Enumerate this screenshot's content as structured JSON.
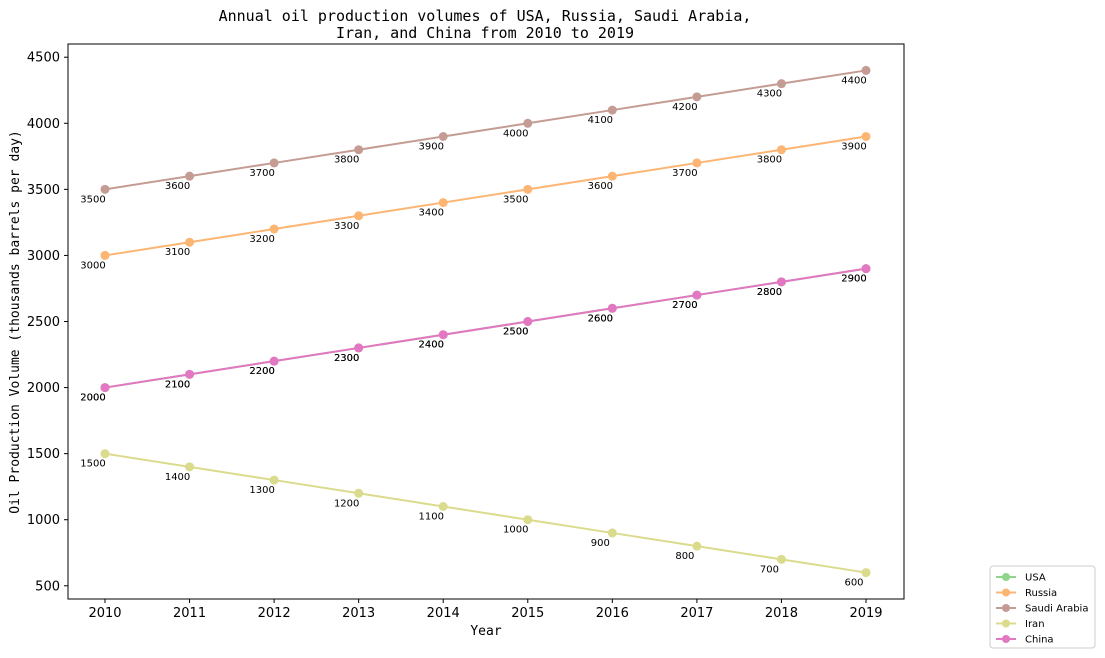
{
  "chart_data": {
    "type": "line",
    "title_lines": [
      "Annual oil production volumes of USA, Russia, Saudi Arabia,",
      "Iran, and China from 2010 to 2019"
    ],
    "xlabel": "Year",
    "ylabel": "Oil Production Volume (thousands barrels per day)",
    "x": [
      2010,
      2011,
      2012,
      2013,
      2014,
      2015,
      2016,
      2017,
      2018,
      2019
    ],
    "ylim": [
      400,
      4600
    ],
    "yticks": [
      500,
      1000,
      1500,
      2000,
      2500,
      3000,
      3500,
      4000,
      4500
    ],
    "grid": false,
    "legend_position": "bottom-right, outside plot",
    "series": [
      {
        "name": "USA",
        "color": "#8fd68a",
        "values": [
          2000,
          2100,
          2200,
          2300,
          2400,
          2500,
          2600,
          2700,
          2800,
          2900
        ]
      },
      {
        "name": "Russia",
        "color": "#fdb574",
        "values": [
          3000,
          3100,
          3200,
          3300,
          3400,
          3500,
          3600,
          3700,
          3800,
          3900
        ]
      },
      {
        "name": "Saudi Arabia",
        "color": "#c49c94",
        "values": [
          3500,
          3600,
          3700,
          3800,
          3900,
          4000,
          4100,
          4200,
          4300,
          4400
        ]
      },
      {
        "name": "Iran",
        "color": "#dbdb8d",
        "values": [
          1500,
          1400,
          1300,
          1200,
          1100,
          1000,
          900,
          800,
          700,
          600
        ]
      },
      {
        "name": "China",
        "color": "#e377c2",
        "values": [
          2000,
          2100,
          2200,
          2300,
          2400,
          2500,
          2600,
          2700,
          2800,
          2900
        ]
      }
    ]
  }
}
